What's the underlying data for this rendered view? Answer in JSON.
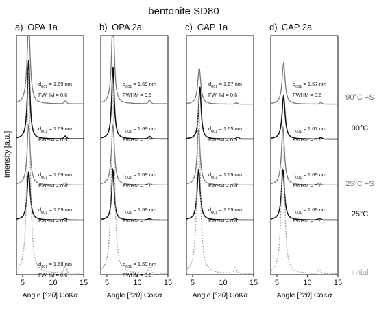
{
  "chart_data": {
    "type": "line",
    "title": "bentonite SD80",
    "ylabel": "Intensity [a.u.]",
    "xlabel_prefix": "Angle [°2",
    "xlabel_theta": "θ",
    "xlabel_suffix": "] CoK",
    "xlabel_alpha": "α",
    "xlim": [
      4,
      15
    ],
    "xticks": [
      "5",
      "10",
      "15"
    ],
    "grid": false,
    "conditions": [
      {
        "label": "90°C +S",
        "color": "#777777"
      },
      {
        "label": "90°C",
        "color": "#111111"
      },
      {
        "label": "25°C +S",
        "color": "#777777"
      },
      {
        "label": "25°C",
        "color": "#111111"
      },
      {
        "label": "initial",
        "color": "#9a9a9a"
      }
    ],
    "panels": [
      {
        "letter": "a)",
        "name": "OPA 1a",
        "annotations": [
          {
            "d001": "1.69 nm",
            "fwhm": "0.6"
          },
          {
            "d001": "1.69 nm",
            "fwhm": "0.5"
          },
          {
            "d001": "1.69 nm",
            "fwhm": "0.6"
          },
          {
            "d001": "1.69 nm",
            "fwhm": "0.6"
          },
          {
            "d001": "1.68 nm",
            "fwhm": "0.6"
          }
        ],
        "series": [
          {
            "peak": 6.0,
            "fwhm": 0.6,
            "height": 0.34
          },
          {
            "peak": 6.0,
            "fwhm": 0.5,
            "height": 0.33
          },
          {
            "peak": 6.0,
            "fwhm": 0.6,
            "height": 0.25
          },
          {
            "peak": 6.0,
            "fwhm": 0.6,
            "height": 0.2
          },
          {
            "peak": 6.0,
            "fwhm": 0.6,
            "height": 0.85
          }
        ]
      },
      {
        "letter": "b)",
        "name": "OPA 2a",
        "annotations": [
          {
            "d001": "1.69 nm",
            "fwhm": "0.5"
          },
          {
            "d001": "1.69 nm",
            "fwhm": "0.5"
          },
          {
            "d001": "1.69 nm",
            "fwhm": "0.6"
          },
          {
            "d001": "1.69 nm",
            "fwhm": "0.5"
          },
          {
            "d001": "1.69 nm",
            "fwhm": "0.6"
          }
        ],
        "series": [
          {
            "peak": 6.0,
            "fwhm": 0.5,
            "height": 0.4
          },
          {
            "peak": 6.0,
            "fwhm": 0.5,
            "height": 0.3
          },
          {
            "peak": 6.0,
            "fwhm": 0.6,
            "height": 0.25
          },
          {
            "peak": 6.0,
            "fwhm": 0.5,
            "height": 0.21
          },
          {
            "peak": 6.0,
            "fwhm": 0.6,
            "height": 0.78
          }
        ]
      },
      {
        "letter": "c)",
        "name": "CAP 1a",
        "annotations": [
          {
            "d001": "1.67 nm",
            "fwhm": "0.6"
          },
          {
            "d001": "1.65 nm",
            "fwhm": "0.5"
          },
          {
            "d001": "1.69 nm",
            "fwhm": "0.6"
          },
          {
            "d001": "1.69 nm",
            "fwhm": "0.6"
          },
          {
            "d001": "",
            "fwhm": ""
          }
        ],
        "series": [
          {
            "peak": 6.1,
            "fwhm": 0.6,
            "height": 0.15
          },
          {
            "peak": 6.2,
            "fwhm": 0.5,
            "height": 0.22
          },
          {
            "peak": 6.0,
            "fwhm": 0.6,
            "height": 0.23
          },
          {
            "peak": 6.0,
            "fwhm": 0.6,
            "height": 0.21
          },
          {
            "peak": 6.0,
            "fwhm": 0.6,
            "height": 0.74
          }
        ]
      },
      {
        "letter": "d)",
        "name": "CAP 2a",
        "annotations": [
          {
            "d001": "1.67 nm",
            "fwhm": "0.6"
          },
          {
            "d001": "1.67 nm",
            "fwhm": "0.6"
          },
          {
            "d001": "1.69 nm",
            "fwhm": "0.6"
          },
          {
            "d001": "1.69 nm",
            "fwhm": "0.6"
          },
          {
            "d001": "",
            "fwhm": ""
          }
        ],
        "series": [
          {
            "peak": 6.1,
            "fwhm": 0.6,
            "height": 0.17
          },
          {
            "peak": 6.1,
            "fwhm": 0.6,
            "height": 0.18
          },
          {
            "peak": 6.0,
            "fwhm": 0.6,
            "height": 0.24
          },
          {
            "peak": 6.0,
            "fwhm": 0.6,
            "height": 0.21
          },
          {
            "peak": 6.0,
            "fwhm": 0.6,
            "height": 0.62
          }
        ]
      }
    ]
  }
}
